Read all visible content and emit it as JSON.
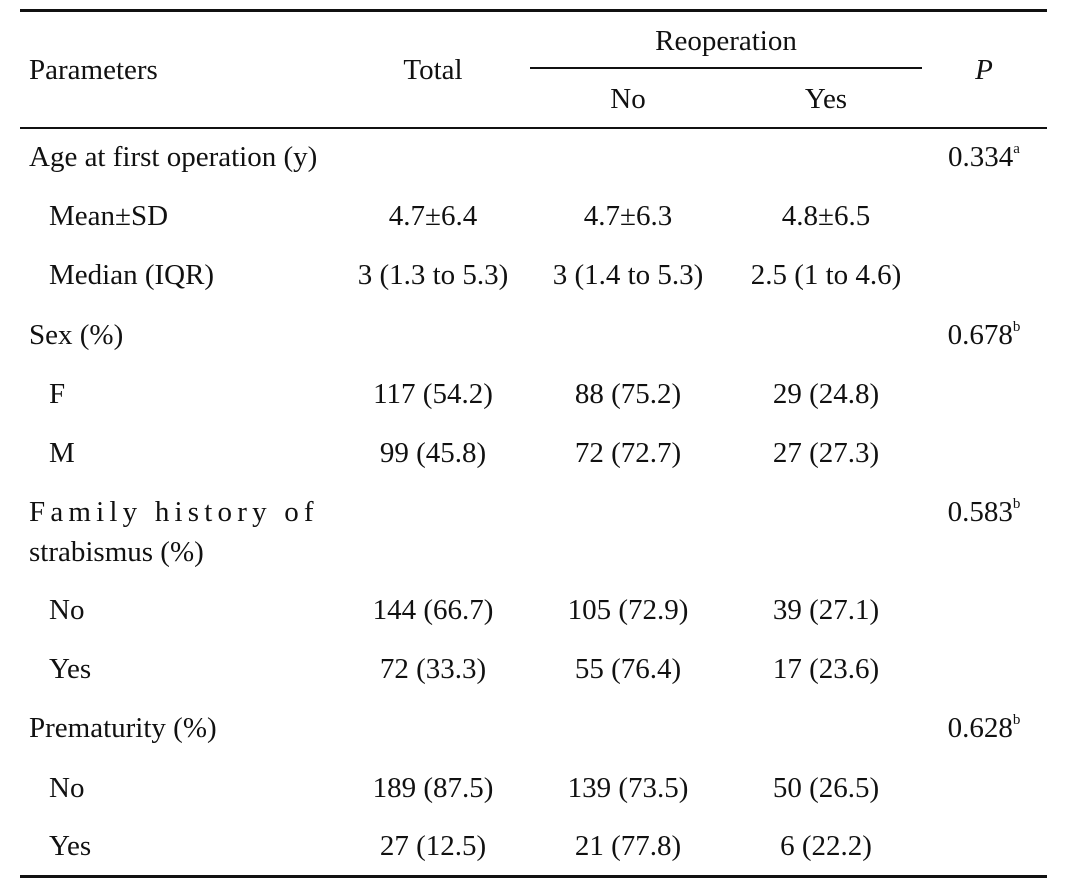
{
  "header": {
    "parameters": "Parameters",
    "total": "Total",
    "reoperation": "Reoperation",
    "no": "No",
    "yes": "Yes",
    "p": "P"
  },
  "rows": [
    {
      "label": "Age at first operation (y)",
      "p": "0.334",
      "p_sup": "a"
    },
    {
      "label": "Mean±SD",
      "total": "4.7±6.4",
      "no": "4.7±6.3",
      "yes": "4.8±6.5"
    },
    {
      "label": "Median (IQR)",
      "total": "3 (1.3 to 5.3)",
      "no": "3 (1.4 to 5.3)",
      "yes": "2.5 (1 to 4.6)"
    },
    {
      "label": "Sex (%)",
      "p": "0.678",
      "p_sup": "b"
    },
    {
      "label": "F",
      "total": "117 (54.2)",
      "no": "88 (75.2)",
      "yes": "29 (24.8)"
    },
    {
      "label": "M",
      "total": "99 (45.8)",
      "no": "72 (72.7)",
      "yes": "27 (27.3)"
    },
    {
      "label": "Family history of",
      "label2": "strabismus (%)",
      "p": "0.583",
      "p_sup": "b"
    },
    {
      "label": "No",
      "total": "144 (66.7)",
      "no": "105 (72.9)",
      "yes": "39 (27.1)"
    },
    {
      "label": "Yes",
      "total": "72 (33.3)",
      "no": "55 (76.4)",
      "yes": "17 (23.6)"
    },
    {
      "label": "Prematurity (%)",
      "p": "0.628",
      "p_sup": "b"
    },
    {
      "label": "No",
      "total": "189 (87.5)",
      "no": "139 (73.5)",
      "yes": "50 (26.5)"
    },
    {
      "label": "Yes",
      "total": "27 (12.5)",
      "no": "21 (77.8)",
      "yes": "6 (22.2)"
    }
  ]
}
